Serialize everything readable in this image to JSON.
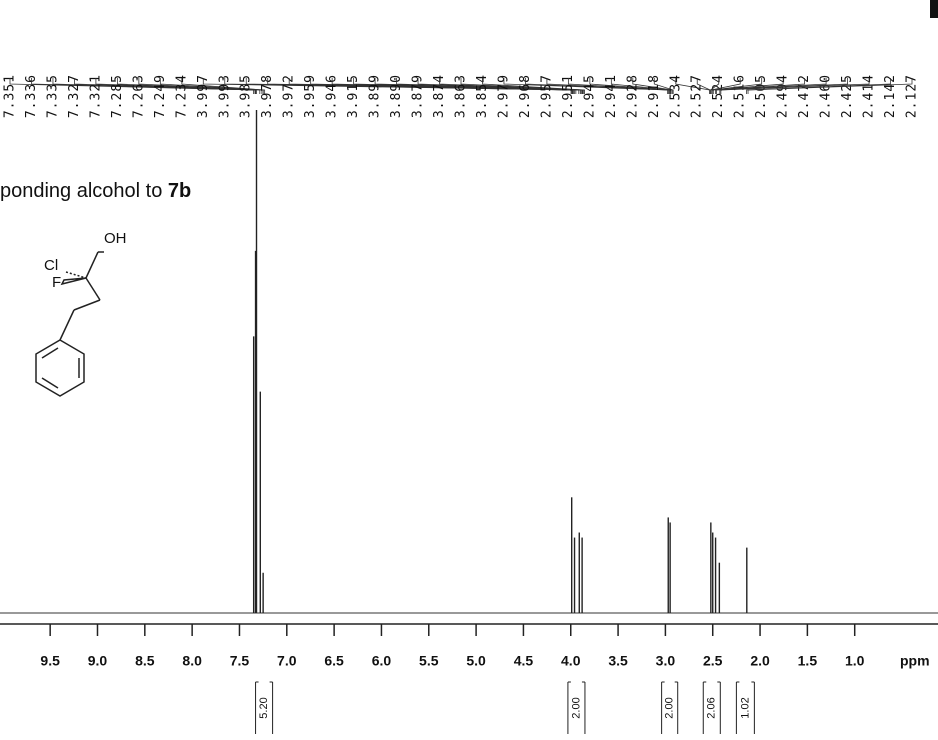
{
  "chart_data": {
    "type": "nmr",
    "title": "ponding alcohol to",
    "title_ref": "7b",
    "structure_labels": [
      "OH",
      "Cl",
      "F"
    ],
    "xlim": [
      10.03,
      0.12
    ],
    "ylim": [
      0,
      100
    ],
    "xlabel": "ppm",
    "xticks": [
      {
        "value": 9.5,
        "label": "9.5"
      },
      {
        "value": 9,
        "label": "9.0"
      },
      {
        "value": 8.5,
        "label": "8.5"
      },
      {
        "value": 8,
        "label": "8.0"
      },
      {
        "value": 7.5,
        "label": "7.5"
      },
      {
        "value": 7,
        "label": "7.0"
      },
      {
        "value": 6.5,
        "label": "6.5"
      },
      {
        "value": 6,
        "label": "6.0"
      },
      {
        "value": 5.5,
        "label": "5.5"
      },
      {
        "value": 5,
        "label": "5.0"
      },
      {
        "value": 4.5,
        "label": "4.5"
      },
      {
        "value": 4,
        "label": "4.0"
      },
      {
        "value": 3.5,
        "label": "3.5"
      },
      {
        "value": 3,
        "label": "3.0"
      },
      {
        "value": 2.5,
        "label": "2.5"
      },
      {
        "value": 2,
        "label": "2.0"
      },
      {
        "value": 1.5,
        "label": "1.5"
      },
      {
        "value": 1,
        "label": "1.0"
      }
    ],
    "peak_labels": [
      7.351,
      7.336,
      7.335,
      7.327,
      7.321,
      7.285,
      7.263,
      7.249,
      7.234,
      3.997,
      3.993,
      3.985,
      3.978,
      3.972,
      3.959,
      3.946,
      3.915,
      3.899,
      {
        "value": 3.89,
        "label": "3.890"
      },
      3.879,
      3.874,
      3.863,
      3.854,
      2.979,
      2.968,
      2.957,
      2.951,
      2.945,
      2.941,
      2.928,
      2.918,
      2.534,
      2.527,
      2.524,
      2.516,
      2.505,
      2.494,
      2.472,
      {
        "value": 2.46,
        "label": "2.460"
      },
      2.425,
      2.414,
      2.142,
      2.127
    ],
    "color": "#222222",
    "peaks_x": [
      7.35,
      7.33,
      7.32,
      7.28,
      7.25,
      3.99,
      3.96,
      3.91,
      3.88,
      2.97,
      2.95,
      2.52,
      2.5,
      2.47,
      2.43,
      2.14
    ],
    "peaks_y": [
      55,
      72,
      100,
      44,
      8,
      23,
      15,
      16,
      15,
      19,
      18,
      18,
      16,
      15,
      10,
      13
    ],
    "integral_ranges": [
      [
        7.33,
        7.15
      ],
      [
        4.03,
        3.85
      ],
      [
        3.04,
        2.87
      ],
      [
        2.6,
        2.42
      ],
      [
        2.25,
        2.06
      ]
    ],
    "integral_values": [
      {
        "value": 5.2,
        "label": "5.20"
      },
      {
        "value": 2,
        "label": "2.00"
      },
      {
        "value": 2,
        "label": "2.00"
      },
      2.06,
      1.02
    ]
  }
}
